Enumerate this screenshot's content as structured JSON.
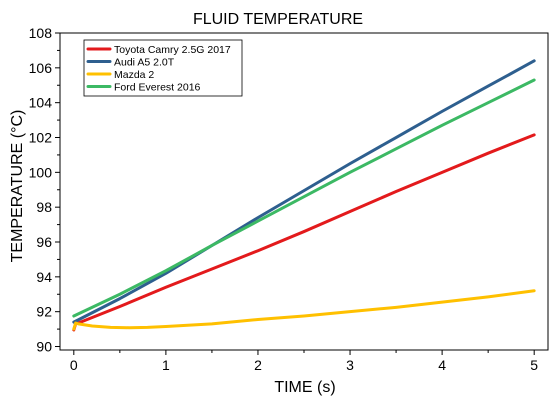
{
  "chart_data": {
    "type": "line",
    "title": "FLUID TEMPERATURE",
    "xlabel": "TIME (s)",
    "ylabel": "TEMPERATURE (°C)",
    "xlim": [
      -0.15,
      5.15
    ],
    "ylim": [
      89.8,
      108
    ],
    "xticks": [
      0,
      1,
      2,
      3,
      4,
      5
    ],
    "yticks": [
      90,
      92,
      94,
      96,
      98,
      100,
      102,
      104,
      106,
      108
    ],
    "grid": false,
    "legend_position": "top-left",
    "series": [
      {
        "name": "Toyota Camry 2.5G 2017",
        "color": "#e31a1c",
        "x": [
          0,
          0.02,
          0.05,
          0.5,
          1,
          1.5,
          2,
          2.5,
          3,
          3.5,
          4,
          4.5,
          5
        ],
        "y": [
          90.95,
          91.3,
          91.35,
          92.3,
          93.4,
          94.45,
          95.5,
          96.6,
          97.75,
          98.9,
          100.0,
          101.1,
          102.15
        ]
      },
      {
        "name": "Audi A5 2.0T",
        "color": "#2e5f8f",
        "x": [
          0,
          0.5,
          1,
          1.5,
          2,
          2.5,
          3,
          3.5,
          4,
          4.5,
          5
        ],
        "y": [
          91.4,
          92.75,
          94.2,
          95.8,
          97.4,
          98.95,
          100.5,
          102.0,
          103.5,
          104.95,
          106.4
        ]
      },
      {
        "name": "Mazda 2",
        "color": "#ffc000",
        "x": [
          0,
          0.02,
          0.05,
          0.2,
          0.4,
          0.6,
          0.8,
          1,
          1.5,
          2,
          2.5,
          3,
          3.5,
          4,
          4.5,
          5
        ],
        "y": [
          91.0,
          91.35,
          91.3,
          91.18,
          91.1,
          91.08,
          91.1,
          91.15,
          91.3,
          91.55,
          91.75,
          92.0,
          92.25,
          92.55,
          92.85,
          93.2
        ]
      },
      {
        "name": "Ford Everest 2016",
        "color": "#3cb964",
        "x": [
          0,
          0.5,
          1,
          1.5,
          2,
          2.5,
          3,
          3.5,
          4,
          4.5,
          5
        ],
        "y": [
          91.75,
          93.0,
          94.35,
          95.8,
          97.2,
          98.6,
          100.0,
          101.35,
          102.7,
          104.0,
          105.3
        ]
      }
    ]
  }
}
